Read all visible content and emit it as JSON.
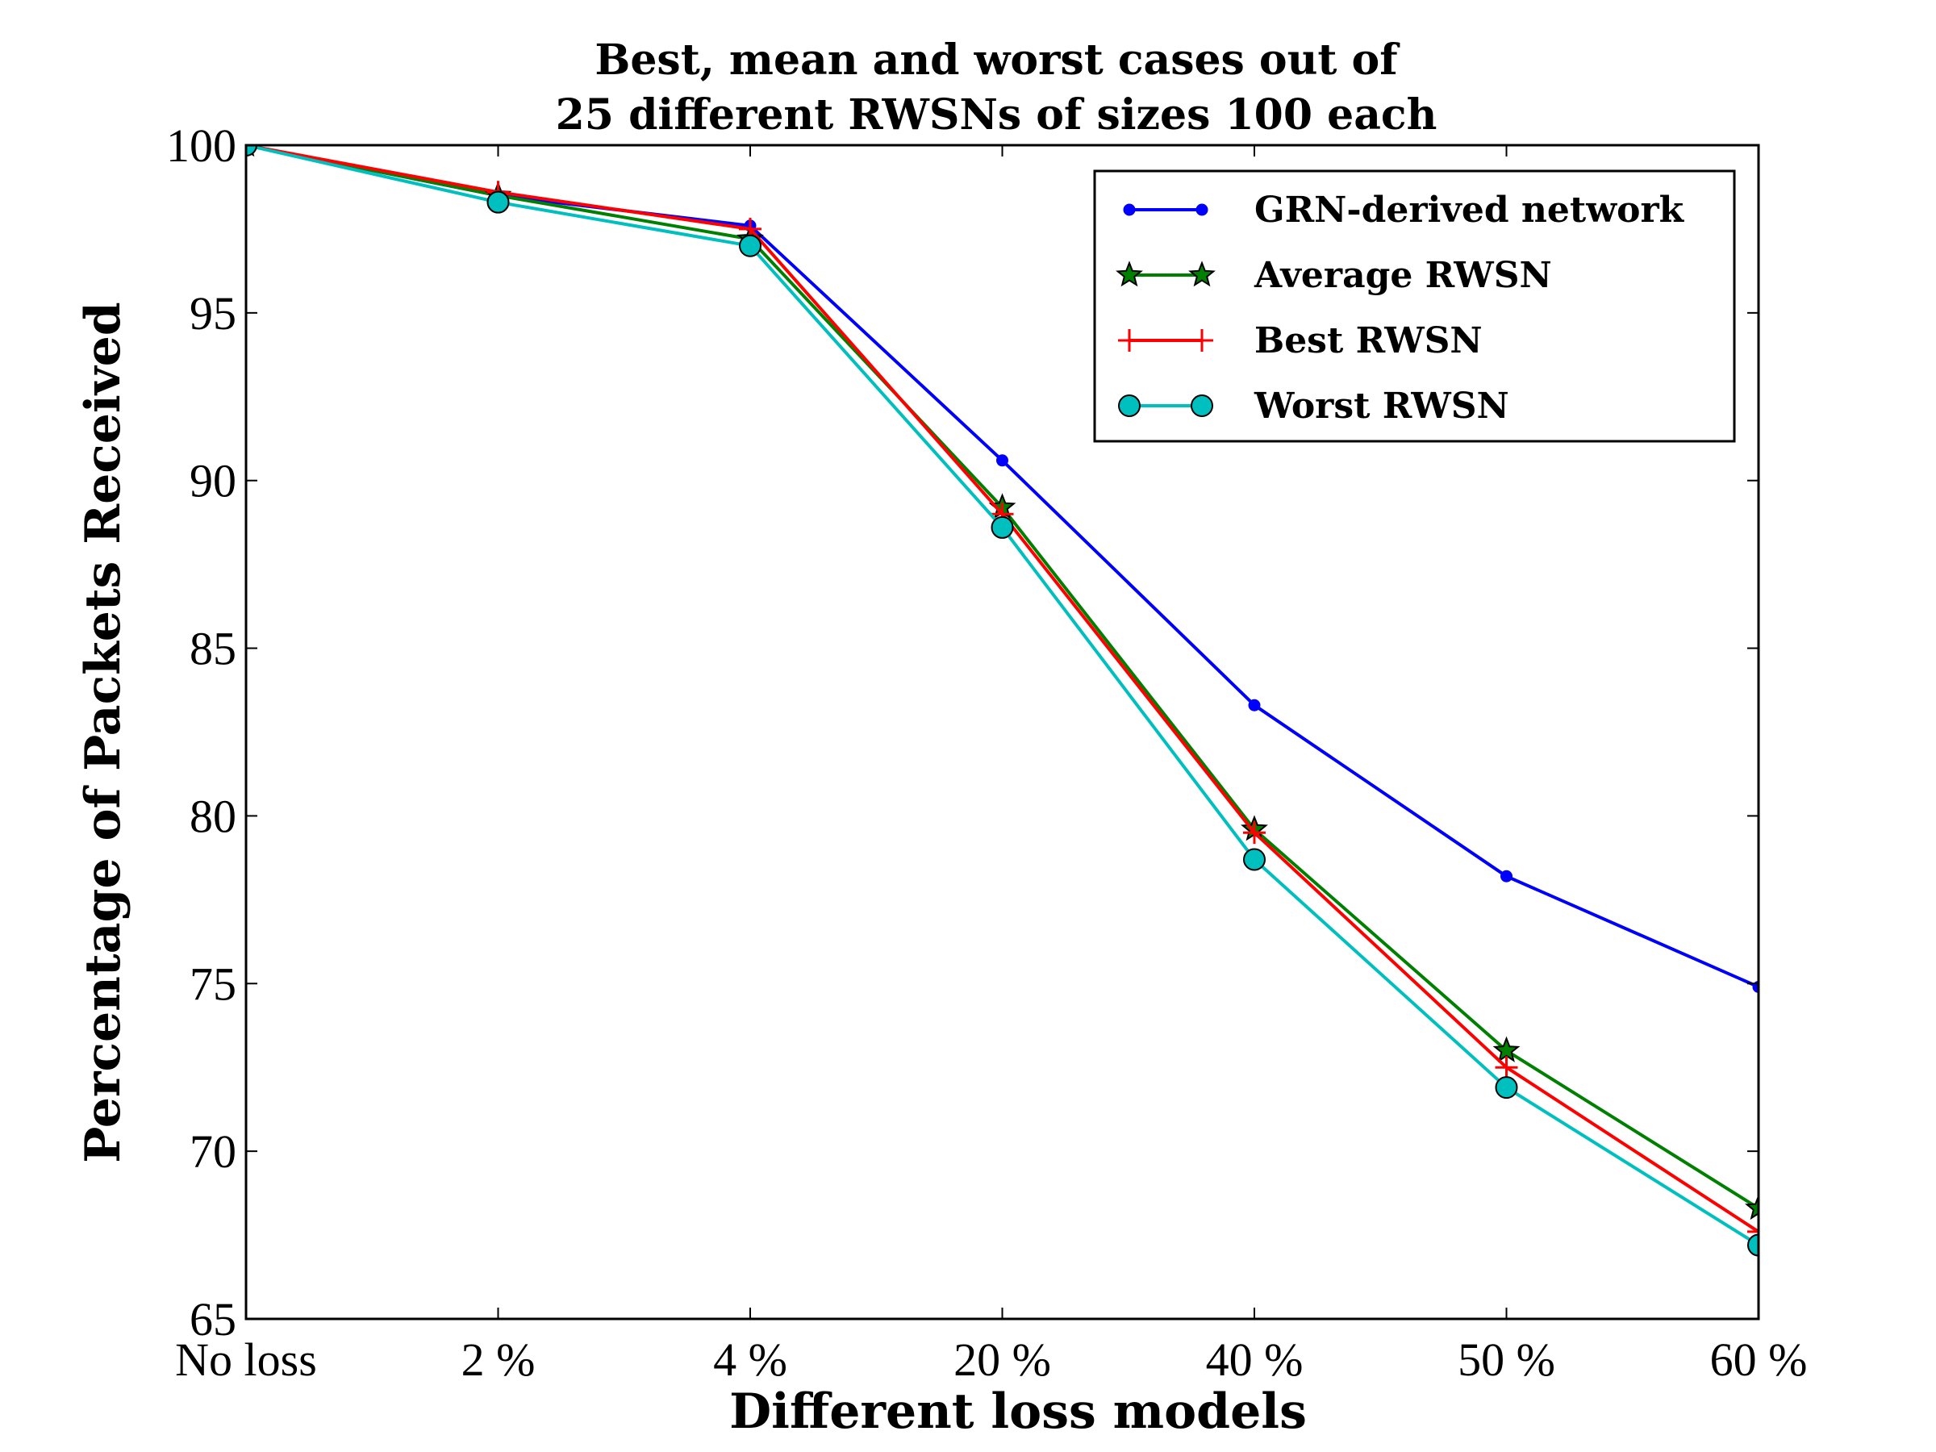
{
  "chart_data": {
    "type": "line",
    "title_lines": [
      "Best, mean and worst cases out of",
      "25 different RWSNs of sizes 100 each"
    ],
    "xlabel": "Different loss models",
    "ylabel": "Percentage of Packets Received",
    "categories": [
      "No loss",
      "2 %",
      "4 %",
      "20 %",
      "40 %",
      "50 %",
      "60 %"
    ],
    "ylim": [
      65,
      100
    ],
    "yticks": [
      65,
      70,
      75,
      80,
      85,
      90,
      95,
      100
    ],
    "grid": false,
    "legend_position": "top-right",
    "series": [
      {
        "name": "GRN-derived network",
        "color": "#0000ff",
        "marker": "dot",
        "values": [
          100,
          98.5,
          97.6,
          90.6,
          83.3,
          78.2,
          74.9
        ]
      },
      {
        "name": "Average RWSN",
        "color": "#008000",
        "marker": "star",
        "values": [
          100,
          98.5,
          97.2,
          89.2,
          79.6,
          73.0,
          68.3
        ]
      },
      {
        "name": "Best RWSN",
        "color": "#ff0000",
        "marker": "plus",
        "values": [
          100,
          98.6,
          97.5,
          89.0,
          79.5,
          72.5,
          67.6
        ]
      },
      {
        "name": "Worst RWSN",
        "color": "#00bfbf",
        "marker": "circle",
        "values": [
          100,
          98.3,
          97.0,
          88.6,
          78.7,
          71.9,
          67.2
        ]
      }
    ]
  }
}
